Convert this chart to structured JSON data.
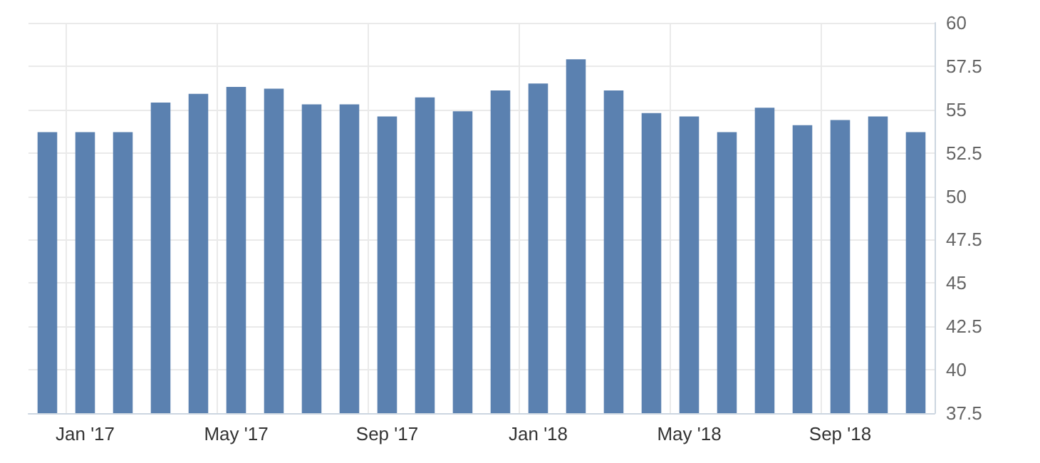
{
  "chart_data": {
    "type": "bar",
    "categories": [
      null,
      "Jan '17",
      null,
      null,
      null,
      "May '17",
      null,
      null,
      null,
      "Sep '17",
      null,
      null,
      null,
      "Jan '18",
      null,
      null,
      null,
      "May '18",
      null,
      null,
      null,
      "Sep '18",
      null,
      null
    ],
    "values": [
      53.7,
      53.7,
      53.7,
      55.4,
      55.9,
      56.3,
      56.2,
      55.3,
      55.3,
      54.6,
      55.7,
      54.9,
      56.1,
      56.5,
      57.9,
      56.1,
      54.8,
      54.6,
      53.7,
      55.1,
      54.1,
      54.4,
      54.6,
      53.7
    ],
    "color": "#5b81b0",
    "ylim": [
      37.5,
      60
    ],
    "yticks": [
      37.5,
      40,
      42.5,
      45,
      47.5,
      50,
      52.5,
      55,
      57.5,
      60
    ],
    "grid": true
  }
}
